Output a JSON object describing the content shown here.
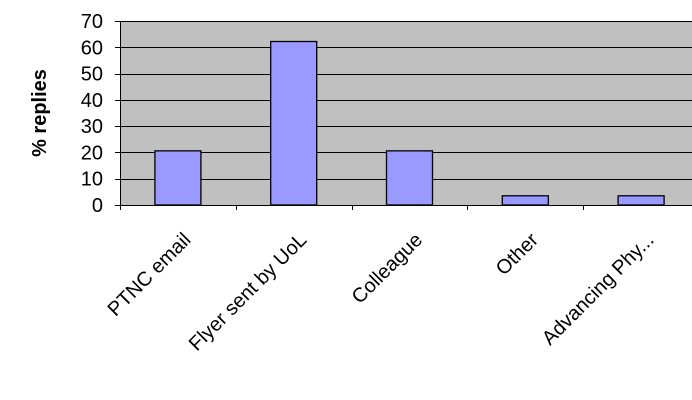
{
  "colors": {
    "plot_background": "#c0c0c0",
    "bar_fill": "#9999ff",
    "bar_stroke": "#000000",
    "gridline": "#000000"
  },
  "chart_data": {
    "type": "bar",
    "title": "",
    "xlabel": "",
    "ylabel": "% replies",
    "categories": [
      "PTNC email",
      "Flyer sent by UoL",
      "Colleague",
      "Other",
      "Advancing Phy..."
    ],
    "values": [
      20.6,
      62.2,
      20.6,
      3.5,
      3.5
    ],
    "ylim": [
      0,
      70
    ],
    "yticks": [
      0,
      10,
      20,
      30,
      40,
      50,
      60,
      70
    ],
    "grid": true,
    "legend": "none"
  }
}
